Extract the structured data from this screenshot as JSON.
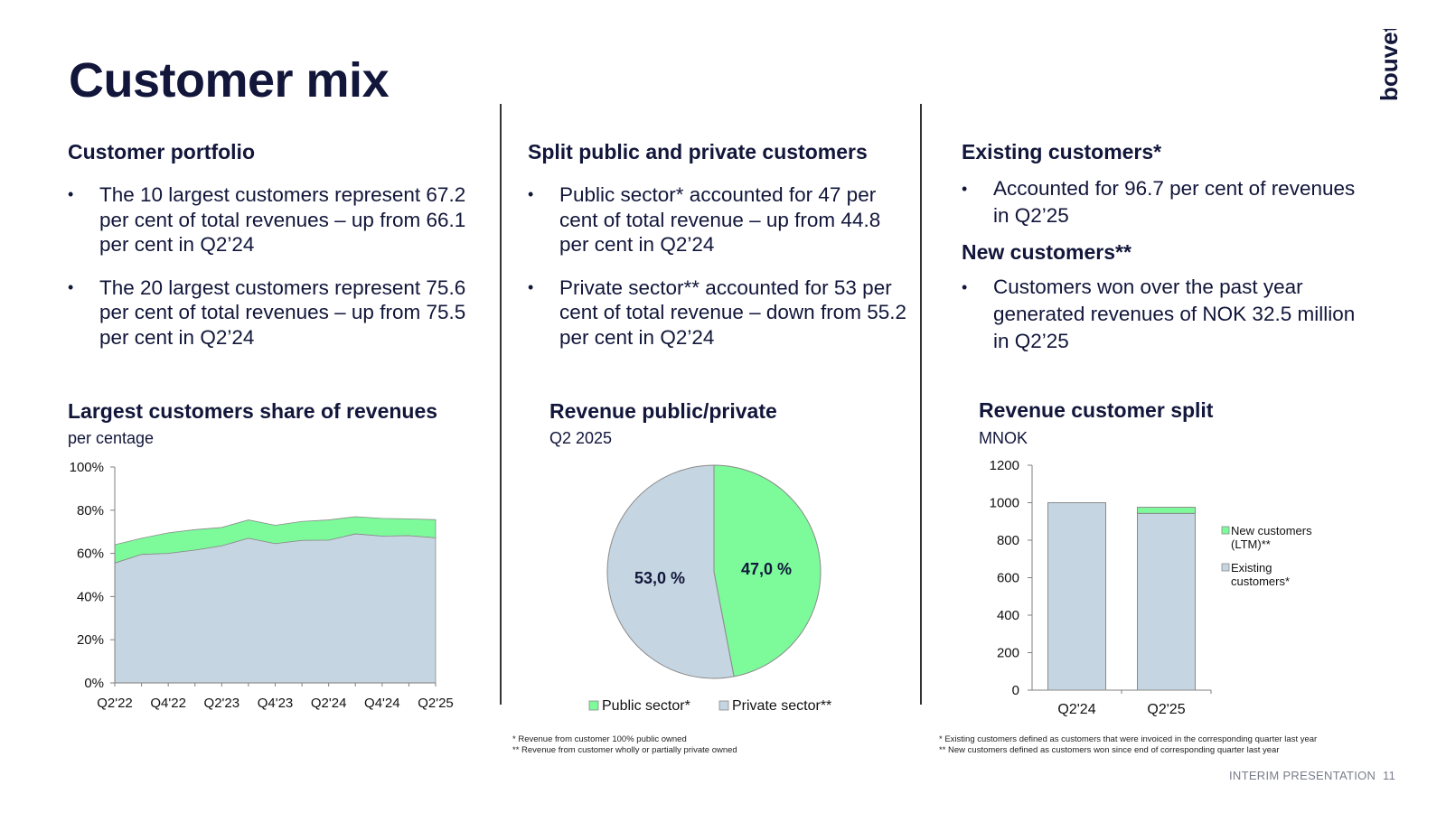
{
  "page": {
    "title": "Customer mix",
    "logo_text": "bouvet",
    "footer_label": "INTERIM PRESENTATION",
    "page_number": "11"
  },
  "colors": {
    "green": "#7dfb9b",
    "grey_blue": "#c5d5e1",
    "navy": "#11163a"
  },
  "col1": {
    "heading": "Customer portfolio",
    "bullets": [
      "The 10 largest customers represent 67.2 per cent of total revenues – up from 66.1 per cent in Q2’24",
      "The 20 largest customers represent 75.6 per cent of total revenues – up from 75.5 per cent in Q2’24"
    ]
  },
  "col2": {
    "heading": "Split public and private customers",
    "bullets": [
      "Public sector* accounted for 47 per cent of total revenue – up from 44.8 per cent in Q2’24",
      "Private sector** accounted for 53 per cent of total revenue – down from 55.2 per cent in Q2’24"
    ],
    "notes": [
      "* Revenue from customer 100% public owned",
      "** Revenue from customer wholly or partially private owned"
    ]
  },
  "col3": {
    "heading1": "Existing customers*",
    "bullet1": "Accounted for 96.7 per cent of revenues in Q2’25",
    "heading2": "New customers**",
    "bullet2": "Customers won over the past year generated revenues of NOK 32.5 million in Q2’25",
    "notes": [
      "* Existing customers defined as customers that were invoiced in the corresponding quarter last year",
      "** New customers defined as customers won since end of corresponding quarter last year"
    ]
  },
  "chart_data": [
    {
      "type": "area",
      "title": "Largest customers share of revenues",
      "subtitle": "per centage",
      "x": [
        "Q2'22",
        "Q3'22",
        "Q4'22",
        "Q1'23",
        "Q2'23",
        "Q3'23",
        "Q4'23",
        "Q1'24",
        "Q2'24",
        "Q3'24",
        "Q4'24",
        "Q1'25",
        "Q2'25"
      ],
      "xtick_labels": [
        "Q2'22",
        "Q4'22",
        "Q2'23",
        "Q4'23",
        "Q2'24",
        "Q4'24",
        "Q2'25"
      ],
      "series": [
        {
          "name_hidden": "top10",
          "values": [
            55.5,
            59.5,
            60.0,
            61.5,
            63.5,
            67.0,
            64.5,
            66.0,
            66.1,
            69.0,
            68.0,
            68.2,
            67.2
          ]
        },
        {
          "name_hidden": "top20",
          "values": [
            64.0,
            67.0,
            69.5,
            71.0,
            72.0,
            75.5,
            73.0,
            74.8,
            75.5,
            77.0,
            76.2,
            76.0,
            75.6
          ]
        }
      ],
      "ylim": [
        0,
        100
      ],
      "yticks": [
        "0%",
        "20%",
        "40%",
        "60%",
        "80%",
        "100%"
      ]
    },
    {
      "type": "pie",
      "title": "Revenue public/private",
      "subtitle": "Q2 2025",
      "slices": [
        {
          "name": "Public sector*",
          "value": 47.0,
          "label": "47,0 %",
          "color": "#7dfb9b"
        },
        {
          "name": "Private sector**",
          "value": 53.0,
          "label": "53,0 %",
          "color": "#c5d5e1"
        }
      ]
    },
    {
      "type": "bar",
      "stacked": true,
      "title": "Revenue customer split",
      "subtitle": "MNOK",
      "categories": [
        "Q2'24",
        "Q2'25"
      ],
      "series": [
        {
          "name": "Existing customers*",
          "values": [
            1000,
            943
          ],
          "color": "#c5d5e1"
        },
        {
          "name": "New customers (LTM)**",
          "values": [
            0,
            32.5
          ],
          "color": "#7dfb9b"
        }
      ],
      "ylim": [
        0,
        1200
      ],
      "yticks": [
        "0",
        "200",
        "400",
        "600",
        "800",
        "1000",
        "1200"
      ]
    }
  ]
}
